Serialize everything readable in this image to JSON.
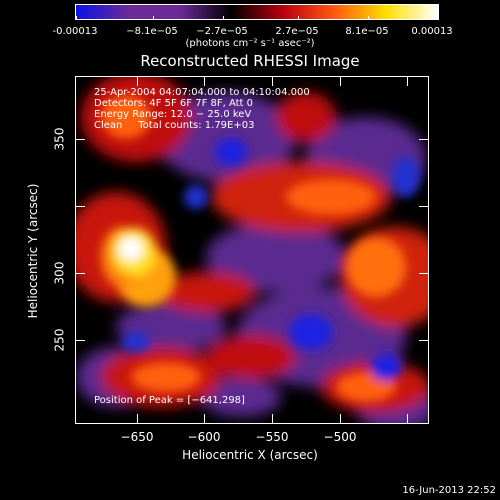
{
  "colorbar": {
    "tick_labels": [
      "-0.00013",
      "−8.1e−05",
      "−2.7e−05",
      "2.7e−05",
      "8.1e−05",
      "0.00013"
    ],
    "units": "(photons cm⁻² s⁻¹ asec⁻²)",
    "colors": [
      "#0a12e6",
      "#6a2a9a",
      "#6a2a9a",
      "#000000",
      "#b80010",
      "#ff5a10",
      "#ffe000",
      "#ffffff"
    ]
  },
  "title": "Reconstructed RHESSI Image",
  "info": {
    "line1": "25-Apr-2004 04:07:04.000 to 04:10:04.000",
    "line2": "Detectors: 4F 5F 6F 7F 8F, Att 0",
    "line3": "Energy Range: 12.0 − 25.0 keV",
    "line4": "Clean     Total counts: 1.79E+03",
    "peak": "Position of Peak = [−641,298]"
  },
  "axes": {
    "xlabel": "Heliocentric X (arcsec)",
    "ylabel": "Heliocentric Y (arcsec)",
    "xticks": [
      "−650",
      "−600",
      "−550",
      "−500"
    ],
    "yticks": [
      "250",
      "300",
      "350"
    ]
  },
  "timestamp": "16-Jun-2013 22:52"
}
